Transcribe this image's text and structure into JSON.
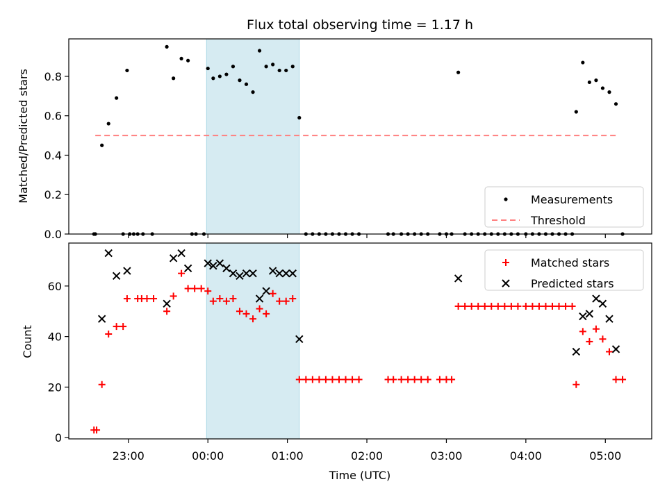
{
  "chart_data": [
    {
      "type": "scatter",
      "title": "Flux total observing time = 1.17 h",
      "xlabel": "",
      "ylabel": "Matched/Predicted stars",
      "ylim": [
        0,
        0.99
      ],
      "yticks": [
        "0.0",
        "0.2",
        "0.4",
        "0.6",
        "0.8"
      ],
      "xlim": [
        "22:15",
        "05:35"
      ],
      "highlight_span": [
        "23:59",
        "01:09"
      ],
      "legend_position": "lower-right",
      "series": [
        {
          "name": "Measurements",
          "style": "black-dot",
          "points": [
            [
              "22:34",
              0.0
            ],
            [
              "22:35",
              0.0
            ],
            [
              "22:40",
              0.45
            ],
            [
              "22:45",
              0.56
            ],
            [
              "22:51",
              0.69
            ],
            [
              "22:56",
              0.0
            ],
            [
              "22:59",
              0.83
            ],
            [
              "23:01",
              0.0
            ],
            [
              "23:04",
              0.0
            ],
            [
              "23:07",
              0.0
            ],
            [
              "23:11",
              0.0
            ],
            [
              "23:18",
              0.0
            ],
            [
              "23:29",
              0.95
            ],
            [
              "23:34",
              0.79
            ],
            [
              "23:40",
              0.89
            ],
            [
              "23:45",
              0.88
            ],
            [
              "23:48",
              0.0
            ],
            [
              "23:51",
              0.0
            ],
            [
              "23:57",
              0.0
            ],
            [
              "24:00",
              0.84
            ],
            [
              "24:04",
              0.79
            ],
            [
              "24:09",
              0.8
            ],
            [
              "24:14",
              0.81
            ],
            [
              "24:19",
              0.85
            ],
            [
              "24:24",
              0.78
            ],
            [
              "24:29",
              0.76
            ],
            [
              "24:34",
              0.72
            ],
            [
              "24:39",
              0.93
            ],
            [
              "24:44",
              0.85
            ],
            [
              "24:49",
              0.86
            ],
            [
              "24:54",
              0.83
            ],
            [
              "24:59",
              0.83
            ],
            [
              "25:04",
              0.85
            ],
            [
              "25:09",
              0.59
            ],
            [
              "25:14",
              0.0
            ],
            [
              "25:19",
              0.0
            ],
            [
              "25:24",
              0.0
            ],
            [
              "25:29",
              0.0
            ],
            [
              "25:34",
              0.0
            ],
            [
              "25:39",
              0.0
            ],
            [
              "25:44",
              0.0
            ],
            [
              "25:49",
              0.0
            ],
            [
              "25:54",
              0.0
            ],
            [
              "26:16",
              0.0
            ],
            [
              "26:20",
              0.0
            ],
            [
              "26:26",
              0.0
            ],
            [
              "26:31",
              0.0
            ],
            [
              "26:36",
              0.0
            ],
            [
              "26:41",
              0.0
            ],
            [
              "26:46",
              0.0
            ],
            [
              "26:55",
              0.0
            ],
            [
              "27:00",
              0.0
            ],
            [
              "27:04",
              0.0
            ],
            [
              "27:09",
              0.82
            ],
            [
              "27:14",
              0.0
            ],
            [
              "27:19",
              0.0
            ],
            [
              "27:24",
              0.0
            ],
            [
              "27:29",
              0.0
            ],
            [
              "27:34",
              0.0
            ],
            [
              "27:39",
              0.0
            ],
            [
              "27:44",
              0.0
            ],
            [
              "27:49",
              0.0
            ],
            [
              "27:54",
              0.0
            ],
            [
              "28:00",
              0.0
            ],
            [
              "28:05",
              0.0
            ],
            [
              "28:10",
              0.0
            ],
            [
              "28:15",
              0.0
            ],
            [
              "28:20",
              0.0
            ],
            [
              "28:25",
              0.0
            ],
            [
              "28:30",
              0.0
            ],
            [
              "28:35",
              0.0
            ],
            [
              "28:38",
              0.62
            ],
            [
              "28:43",
              0.87
            ],
            [
              "28:48",
              0.77
            ],
            [
              "28:53",
              0.78
            ],
            [
              "28:58",
              0.74
            ],
            [
              "29:03",
              0.72
            ],
            [
              "29:08",
              0.66
            ],
            [
              "29:13",
              0.0
            ]
          ]
        },
        {
          "name": "Threshold",
          "style": "dashed-line",
          "color": "#ff7f7f",
          "points": [
            [
              "22:35",
              0.5
            ],
            [
              "29:08",
              0.5
            ]
          ]
        }
      ]
    },
    {
      "type": "scatter",
      "title": "",
      "xlabel": "Time (UTC)",
      "ylabel": "Count",
      "ylim": [
        -0.5,
        77
      ],
      "yticks": [
        "0",
        "20",
        "40",
        "60"
      ],
      "xlim": [
        "22:15",
        "05:35"
      ],
      "xticks": [
        "23:00",
        "00:00",
        "01:00",
        "02:00",
        "03:00",
        "04:00",
        "05:00"
      ],
      "highlight_span": [
        "23:59",
        "01:09"
      ],
      "legend_position": "upper-right",
      "series": [
        {
          "name": "Matched stars",
          "style": "red-plus",
          "color": "#ff0000",
          "points": [
            [
              "22:34",
              3
            ],
            [
              "22:36",
              3
            ],
            [
              "22:40",
              21
            ],
            [
              "22:45",
              41
            ],
            [
              "22:51",
              44
            ],
            [
              "22:56",
              44
            ],
            [
              "22:59",
              55
            ],
            [
              "23:07",
              55
            ],
            [
              "23:10",
              55
            ],
            [
              "23:14",
              55
            ],
            [
              "23:19",
              55
            ],
            [
              "23:29",
              50
            ],
            [
              "23:34",
              56
            ],
            [
              "23:40",
              65
            ],
            [
              "23:45",
              59
            ],
            [
              "23:50",
              59
            ],
            [
              "23:55",
              59
            ],
            [
              "24:00",
              58
            ],
            [
              "24:04",
              54
            ],
            [
              "24:09",
              55
            ],
            [
              "24:14",
              54
            ],
            [
              "24:19",
              55
            ],
            [
              "24:24",
              50
            ],
            [
              "24:29",
              49
            ],
            [
              "24:34",
              47
            ],
            [
              "24:39",
              51
            ],
            [
              "24:44",
              49
            ],
            [
              "24:49",
              57
            ],
            [
              "24:54",
              54
            ],
            [
              "24:59",
              54
            ],
            [
              "25:04",
              55
            ],
            [
              "25:09",
              23
            ],
            [
              "25:14",
              23
            ],
            [
              "25:19",
              23
            ],
            [
              "25:24",
              23
            ],
            [
              "25:29",
              23
            ],
            [
              "25:34",
              23
            ],
            [
              "25:39",
              23
            ],
            [
              "25:44",
              23
            ],
            [
              "25:49",
              23
            ],
            [
              "25:54",
              23
            ],
            [
              "26:16",
              23
            ],
            [
              "26:20",
              23
            ],
            [
              "26:26",
              23
            ],
            [
              "26:31",
              23
            ],
            [
              "26:36",
              23
            ],
            [
              "26:41",
              23
            ],
            [
              "26:46",
              23
            ],
            [
              "26:55",
              23
            ],
            [
              "27:00",
              23
            ],
            [
              "27:04",
              23
            ],
            [
              "27:09",
              52
            ],
            [
              "27:14",
              52
            ],
            [
              "27:19",
              52
            ],
            [
              "27:24",
              52
            ],
            [
              "27:29",
              52
            ],
            [
              "27:34",
              52
            ],
            [
              "27:39",
              52
            ],
            [
              "27:44",
              52
            ],
            [
              "27:49",
              52
            ],
            [
              "27:54",
              52
            ],
            [
              "28:00",
              52
            ],
            [
              "28:05",
              52
            ],
            [
              "28:10",
              52
            ],
            [
              "28:15",
              52
            ],
            [
              "28:20",
              52
            ],
            [
              "28:25",
              52
            ],
            [
              "28:30",
              52
            ],
            [
              "28:35",
              52
            ],
            [
              "28:38",
              21
            ],
            [
              "28:43",
              42
            ],
            [
              "28:48",
              38
            ],
            [
              "28:53",
              43
            ],
            [
              "28:58",
              39
            ],
            [
              "29:03",
              34
            ],
            [
              "29:08",
              23
            ],
            [
              "29:13",
              23
            ]
          ]
        },
        {
          "name": "Predicted stars",
          "style": "black-x",
          "color": "#000000",
          "points": [
            [
              "22:40",
              47
            ],
            [
              "22:45",
              73
            ],
            [
              "22:51",
              64
            ],
            [
              "22:59",
              66
            ],
            [
              "23:29",
              53
            ],
            [
              "23:34",
              71
            ],
            [
              "23:40",
              73
            ],
            [
              "23:45",
              67
            ],
            [
              "24:00",
              69
            ],
            [
              "24:04",
              68
            ],
            [
              "24:09",
              69
            ],
            [
              "24:14",
              67
            ],
            [
              "24:19",
              65
            ],
            [
              "24:24",
              64
            ],
            [
              "24:29",
              65
            ],
            [
              "24:34",
              65
            ],
            [
              "24:39",
              55
            ],
            [
              "24:44",
              58
            ],
            [
              "24:49",
              66
            ],
            [
              "24:54",
              65
            ],
            [
              "24:59",
              65
            ],
            [
              "25:04",
              65
            ],
            [
              "25:09",
              39
            ],
            [
              "27:09",
              63
            ],
            [
              "28:38",
              34
            ],
            [
              "28:43",
              48
            ],
            [
              "28:48",
              49
            ],
            [
              "28:53",
              55
            ],
            [
              "28:58",
              53
            ],
            [
              "29:03",
              47
            ],
            [
              "29:08",
              35
            ]
          ]
        }
      ]
    }
  ]
}
